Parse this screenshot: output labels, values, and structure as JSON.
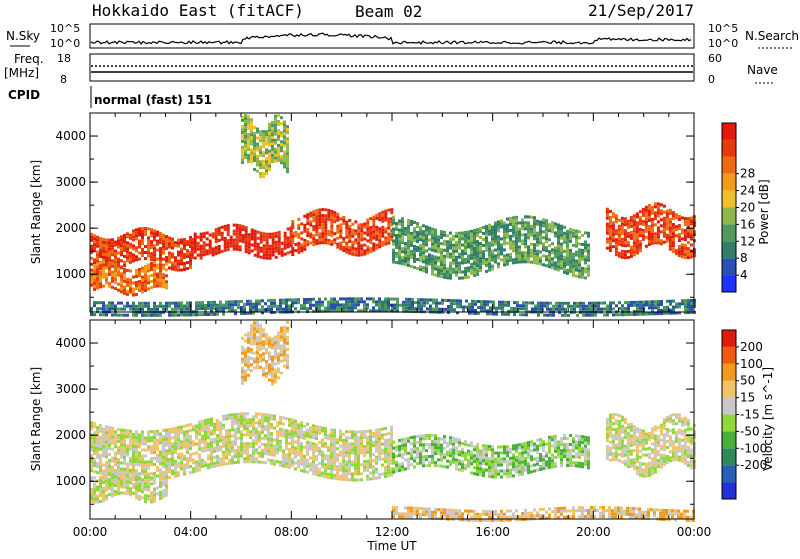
{
  "header": {
    "station": "Hokkaido East (fitACF)",
    "beam": "Beam 02",
    "date": "21/Sep/2017"
  },
  "top_panels": {
    "nsky_label": "N.Sky",
    "nsky_ticks": [
      "10^5",
      "10^0"
    ],
    "nsearch_label": "N.Search",
    "nsearch_ticks": [
      "10^5",
      "10^0"
    ],
    "freq_label": [
      "Freq.",
      "[MHz]"
    ],
    "freq_ticks": [
      "18",
      "8"
    ],
    "nave_label": "Nave",
    "nave_ticks": [
      "60",
      "0"
    ],
    "cpid_label": "CPID",
    "cpid_text": "normal (fast) 151"
  },
  "chart_data": [
    {
      "type": "heatmap",
      "name": "power",
      "ylabel": "Slant Range [km]",
      "xlabel": "",
      "x_ticks": [
        "00:00",
        "04:00",
        "08:00",
        "12:00",
        "16:00",
        "20:00",
        "00:00"
      ],
      "xlim_hours": [
        0,
        24
      ],
      "ylim": [
        180,
        4500
      ],
      "y_ticks": [
        1000,
        2000,
        3000,
        4000
      ],
      "colorbar": {
        "label": "Power [dB]",
        "ticks": [
          "4",
          "8",
          "12",
          "16",
          "20",
          "24",
          "28"
        ],
        "colors": [
          "#1e32ff",
          "#2a4fb0",
          "#2f7f6a",
          "#4f9a5c",
          "#8fb84a",
          "#f0c02a",
          "#f29a1a",
          "#ef6a10",
          "#e8380c",
          "#e21a0a"
        ]
      },
      "echo_regions": [
        {
          "t0": 0.0,
          "t1": 4.0,
          "r0": 1200,
          "r1": 1900,
          "level": 8
        },
        {
          "t0": 4.0,
          "t1": 8.0,
          "r0": 1450,
          "r1": 2000,
          "level": 9
        },
        {
          "t0": 8.0,
          "t1": 12.0,
          "r0": 1550,
          "r1": 2300,
          "level": 8
        },
        {
          "t0": 0.0,
          "t1": 3.0,
          "r0": 650,
          "r1": 1200,
          "level": 7
        },
        {
          "t0": 6.0,
          "t1": 7.8,
          "r0": 3300,
          "r1": 4300,
          "level": 4
        },
        {
          "t0": 12.0,
          "t1": 19.8,
          "r0": 1100,
          "r1": 2100,
          "level": 3
        },
        {
          "t0": 20.5,
          "t1": 24.0,
          "r0": 1500,
          "r1": 2400,
          "level": 8
        },
        {
          "t0": 0.0,
          "t1": 24.0,
          "r0": 180,
          "r1": 450,
          "level": 2
        }
      ]
    },
    {
      "type": "heatmap",
      "name": "velocity",
      "ylabel": "Slant Range [km]",
      "xlabel": "Time UT",
      "x_ticks": [
        "00:00",
        "04:00",
        "08:00",
        "12:00",
        "16:00",
        "20:00",
        "00:00"
      ],
      "xlim_hours": [
        0,
        24
      ],
      "ylim": [
        180,
        4500
      ],
      "y_ticks": [
        1000,
        2000,
        3000,
        4000
      ],
      "colorbar": {
        "label": "Velocity [m s^-1]",
        "ticks": [
          "200",
          "100",
          "50",
          "15",
          "-15",
          "-50",
          "-100",
          "-200"
        ],
        "colors": [
          "#1e32d8",
          "#2a5fb8",
          "#2f8a5a",
          "#49b13a",
          "#8ed83a",
          "#c8c8c8",
          "#f2c26a",
          "#f29a1a",
          "#ef5a10",
          "#e21a0a"
        ]
      },
      "echo_regions": [
        {
          "t0": 0.0,
          "t1": 12.0,
          "r0": 1200,
          "r1": 2300,
          "level": 5
        },
        {
          "t0": 0.0,
          "t1": 3.0,
          "r0": 650,
          "r1": 1200,
          "level": 5
        },
        {
          "t0": 6.0,
          "t1": 7.8,
          "r0": 3300,
          "r1": 4300,
          "level": 6
        },
        {
          "t0": 12.0,
          "t1": 19.8,
          "r0": 1200,
          "r1": 1900,
          "level": 4
        },
        {
          "t0": 20.5,
          "t1": 24.0,
          "r0": 1300,
          "r1": 2300,
          "level": 5
        },
        {
          "t0": 12.0,
          "t1": 24.0,
          "r0": 180,
          "r1": 420,
          "level": 6
        }
      ]
    }
  ]
}
